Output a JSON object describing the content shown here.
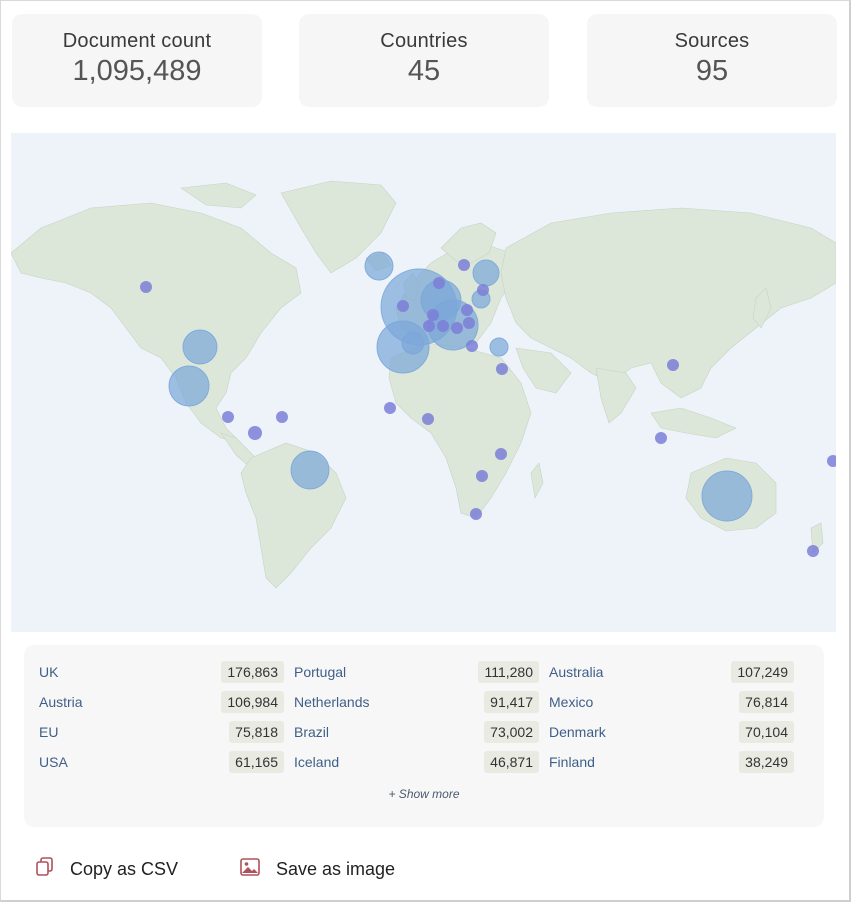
{
  "stats": [
    {
      "label": "Document count",
      "value": "1,095,489"
    },
    {
      "label": "Countries",
      "value": "45"
    },
    {
      "label": "Sources",
      "value": "95"
    }
  ],
  "map": {
    "land_color": "#dde7d9",
    "ocean_color": "#eef3fa",
    "bubble_large_color": "#7aa7d8",
    "bubble_small_color": "#7b7ed6"
  },
  "table": {
    "rows": [
      [
        {
          "name": "UK",
          "value": "176,863"
        },
        {
          "name": "Portugal",
          "value": "111,280"
        },
        {
          "name": "Australia",
          "value": "107,249"
        }
      ],
      [
        {
          "name": "Austria",
          "value": "106,984"
        },
        {
          "name": "Netherlands",
          "value": "91,417"
        },
        {
          "name": "Mexico",
          "value": "76,814"
        }
      ],
      [
        {
          "name": "EU",
          "value": "75,818"
        },
        {
          "name": "Brazil",
          "value": "73,002"
        },
        {
          "name": "Denmark",
          "value": "70,104"
        }
      ],
      [
        {
          "name": "USA",
          "value": "61,165"
        },
        {
          "name": "Iceland",
          "value": "46,871"
        },
        {
          "name": "Finland",
          "value": "38,249"
        }
      ]
    ],
    "show_more_label": "+ Show more"
  },
  "actions": {
    "copy_label": "Copy as CSV",
    "save_label": "Save as image",
    "icon_color": "#b0505a"
  }
}
